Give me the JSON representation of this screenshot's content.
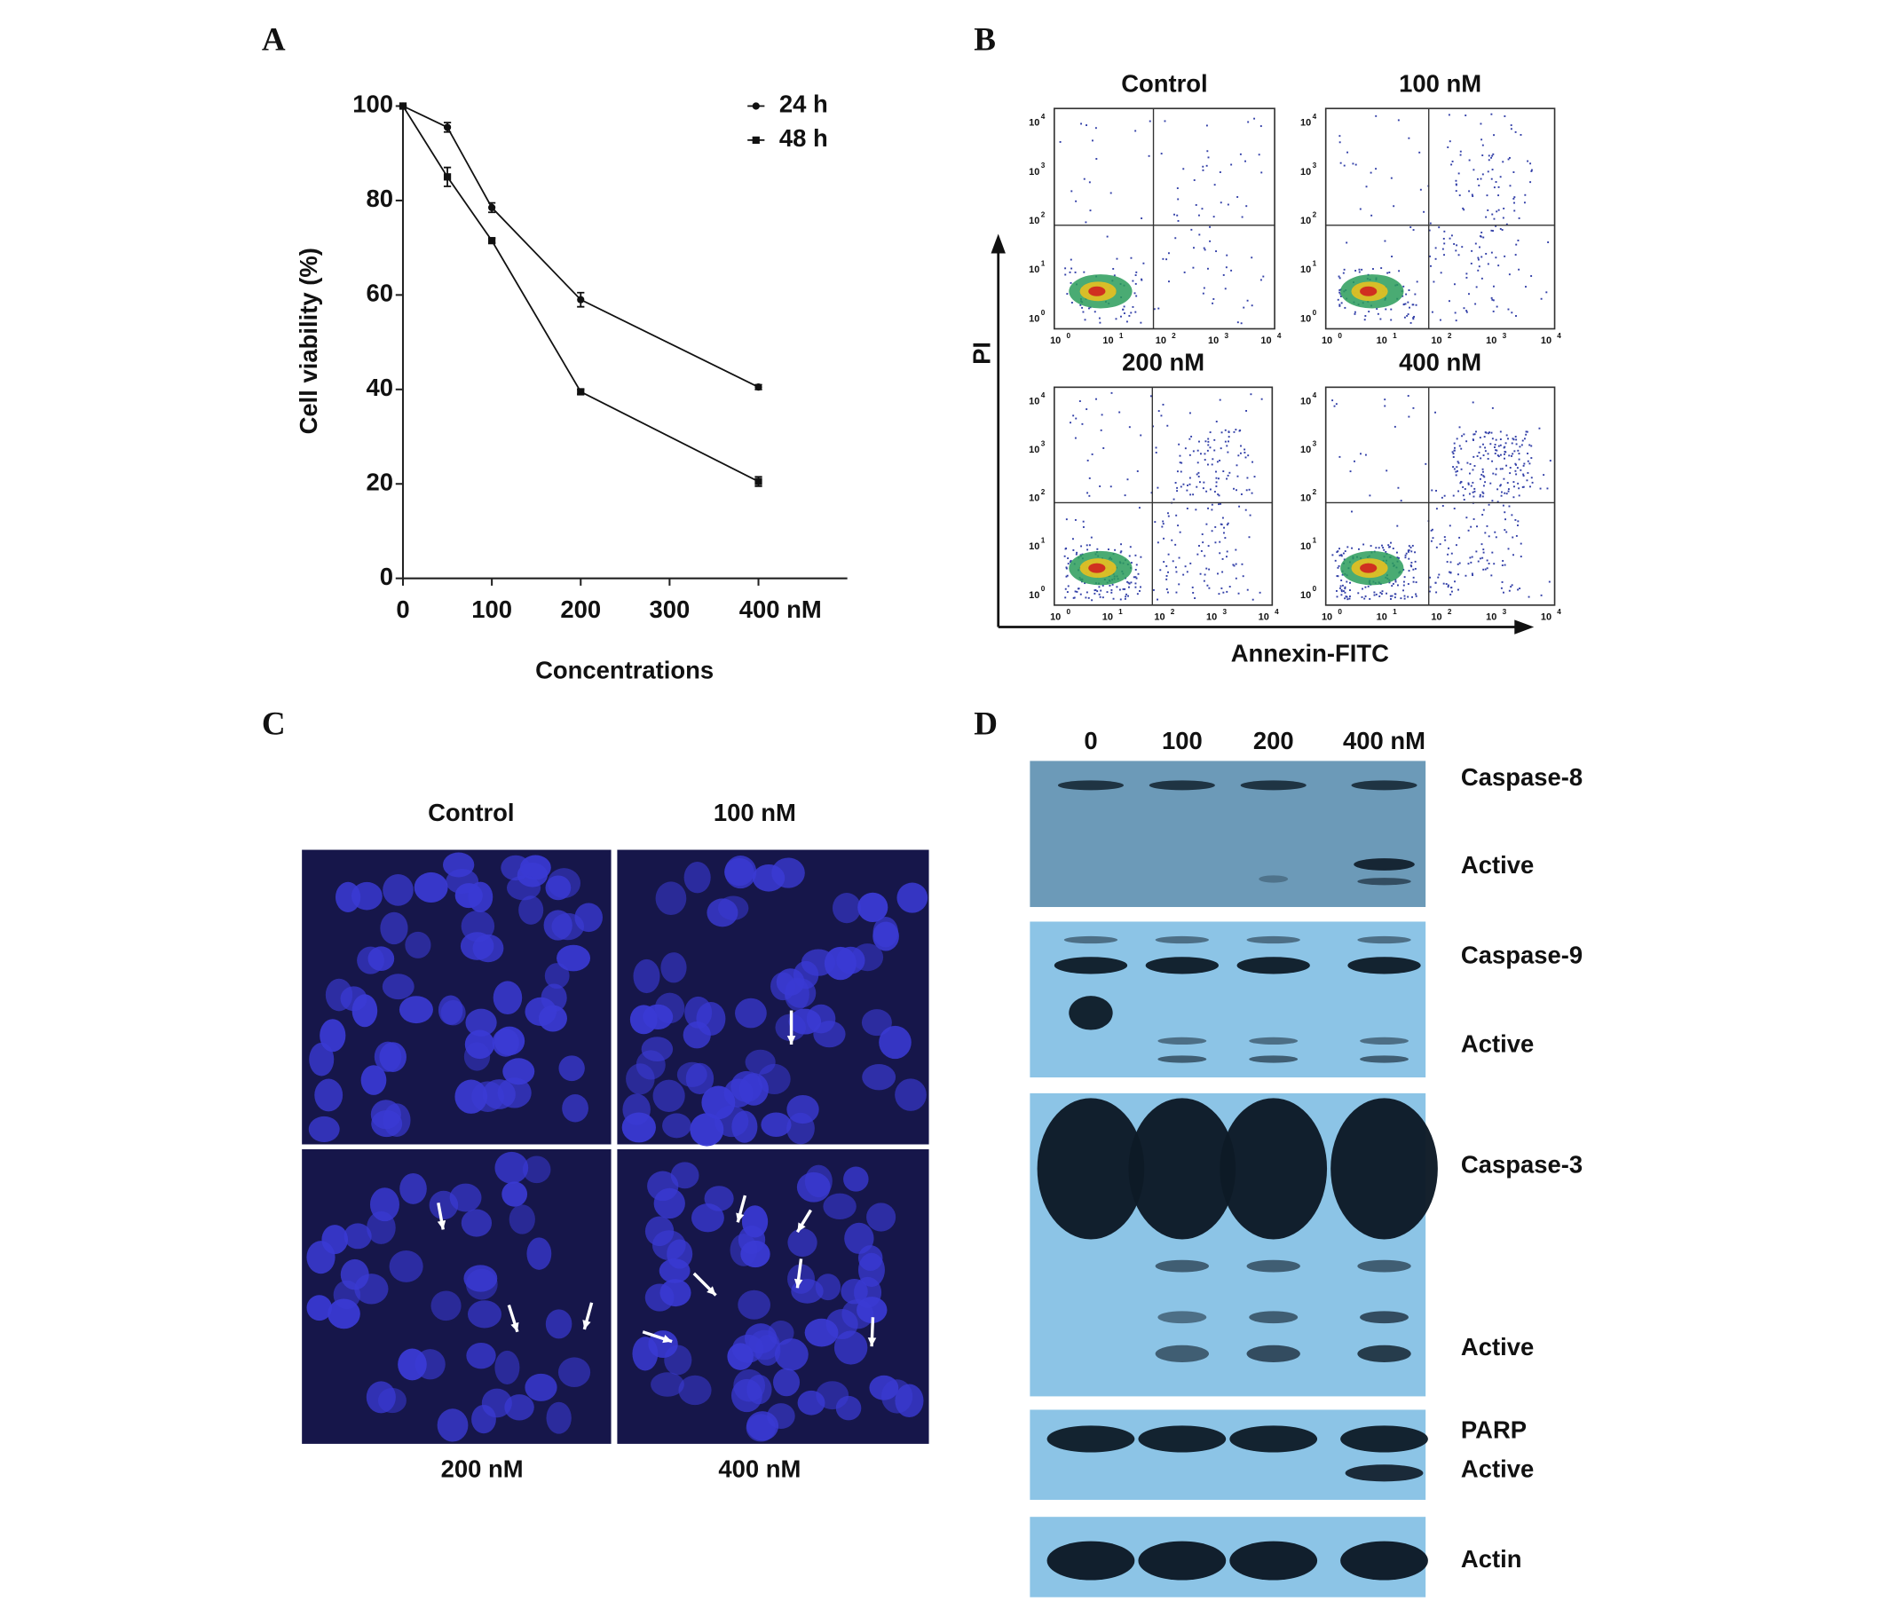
{
  "panel_letters": [
    "A",
    "B",
    "C",
    "D"
  ],
  "chart_data": {
    "type": "line",
    "x_label": "Concentrations",
    "y_label": "Cell viability (%)",
    "x": [
      0,
      50,
      100,
      200,
      400
    ],
    "series": [
      {
        "name": "24 h",
        "color": "#111111",
        "marker": "circle",
        "values": [
          100,
          95.5,
          78.5,
          59,
          40.5
        ],
        "errors": [
          0,
          1,
          1,
          1.5,
          0.5
        ]
      },
      {
        "name": "48 h",
        "color": "#111111",
        "marker": "square",
        "values": [
          100,
          85,
          71.5,
          39.5,
          20.5
        ],
        "errors": [
          0,
          2,
          0.5,
          0.5,
          1
        ]
      }
    ],
    "xlim": [
      0,
      500
    ],
    "xticks": [
      0,
      100,
      200,
      300,
      {
        "value": 400,
        "label": "400 nM"
      }
    ],
    "ylim": [
      0,
      100
    ],
    "yticks": [
      0,
      20,
      40,
      60,
      80,
      100
    ]
  },
  "panel_b": {
    "titles": [
      "Control",
      "100 nM",
      "200 nM",
      "400 nM"
    ],
    "x_label": "Annexin-FITC",
    "y_label": "PI",
    "tick_base": "10",
    "tick_exponents": [
      "0",
      "1",
      "2",
      "3",
      "4"
    ]
  },
  "panel_c": {
    "labels": [
      "Control",
      "100 nM",
      "200 nM",
      "400 nM"
    ]
  },
  "panel_d": {
    "lanes": [
      "0",
      "100",
      "200",
      "400 nM"
    ],
    "blots": [
      {
        "labels": [
          "Caspase-8",
          "Active"
        ]
      },
      {
        "labels": [
          "Caspase-9",
          "Active"
        ]
      },
      {
        "labels": [
          "Caspase-3",
          "Active"
        ]
      },
      {
        "labels": [
          "PARP",
          "Active"
        ]
      },
      {
        "labels": [
          "Actin"
        ]
      }
    ]
  }
}
